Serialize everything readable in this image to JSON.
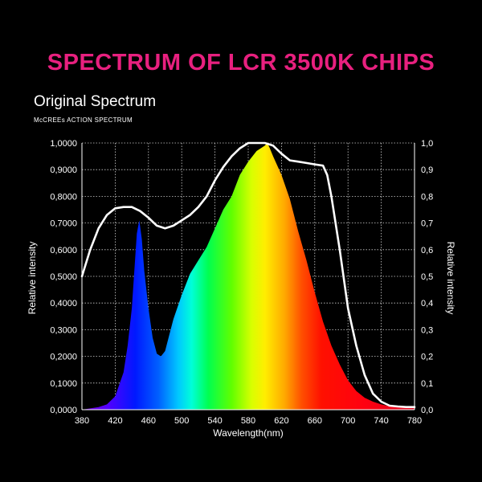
{
  "headline": "SPECTRUM OF LCR 3500K CHIPS",
  "subtitle": "Original Spectrum",
  "caption": "McCREEs ACTION SPECTRUM",
  "colors": {
    "headline": "#e8207f",
    "background": "#000000",
    "grid": "#d0d0d0",
    "curve": "#ffffff"
  },
  "chart_data": {
    "type": "area",
    "title": "",
    "xlabel": "Wavelength(nm)",
    "ylabel_left": "Relative intensity",
    "ylabel_right": "Relative intensity",
    "xlim": [
      380,
      780
    ],
    "ylim": [
      0,
      1
    ],
    "x_ticks": [
      380,
      420,
      460,
      500,
      540,
      580,
      620,
      660,
      700,
      740,
      780
    ],
    "y_ticks_left": [
      "0,0000",
      "0,1000",
      "0,2000",
      "0,3000",
      "0,4000",
      "0,5000",
      "0,6000",
      "0,7000",
      "0,8000",
      "0,9000",
      "1,0000"
    ],
    "y_ticks_right": [
      "0,0",
      "0,1",
      "0,2",
      "0,3",
      "0,4",
      "0,5",
      "0,6",
      "0,7",
      "0,8",
      "0,9",
      "1,0"
    ],
    "grid": true,
    "series": [
      {
        "name": "Original Spectrum",
        "style": "spectral-colored filled area",
        "x": [
          380,
          400,
          410,
          420,
          430,
          435,
          440,
          443,
          446,
          449,
          452,
          455,
          460,
          465,
          470,
          475,
          480,
          485,
          490,
          500,
          510,
          520,
          530,
          540,
          550,
          560,
          570,
          580,
          590,
          600,
          603,
          606,
          610,
          620,
          630,
          640,
          650,
          660,
          670,
          680,
          690,
          700,
          710,
          720,
          730,
          740,
          750,
          760,
          780
        ],
        "y": [
          0.0,
          0.01,
          0.02,
          0.05,
          0.14,
          0.24,
          0.38,
          0.52,
          0.66,
          0.71,
          0.64,
          0.52,
          0.38,
          0.27,
          0.21,
          0.2,
          0.22,
          0.28,
          0.34,
          0.43,
          0.51,
          0.56,
          0.61,
          0.68,
          0.75,
          0.8,
          0.88,
          0.93,
          0.97,
          0.99,
          1.0,
          0.98,
          0.95,
          0.88,
          0.79,
          0.67,
          0.56,
          0.44,
          0.33,
          0.24,
          0.17,
          0.11,
          0.07,
          0.045,
          0.03,
          0.02,
          0.013,
          0.009,
          0.005
        ]
      },
      {
        "name": "McCREEs ACTION SPECTRUM",
        "style": "white line",
        "x": [
          380,
          390,
          400,
          410,
          420,
          430,
          440,
          450,
          460,
          470,
          480,
          490,
          500,
          510,
          520,
          530,
          540,
          550,
          560,
          570,
          580,
          590,
          600,
          610,
          620,
          630,
          640,
          650,
          660,
          670,
          675,
          680,
          690,
          700,
          710,
          720,
          730,
          740,
          750,
          760,
          770,
          780
        ],
        "y": [
          0.5,
          0.6,
          0.68,
          0.73,
          0.755,
          0.76,
          0.76,
          0.745,
          0.72,
          0.69,
          0.68,
          0.69,
          0.71,
          0.73,
          0.76,
          0.8,
          0.86,
          0.91,
          0.95,
          0.98,
          1.0,
          1.0,
          1.0,
          0.99,
          0.96,
          0.935,
          0.93,
          0.925,
          0.92,
          0.915,
          0.88,
          0.8,
          0.6,
          0.38,
          0.24,
          0.13,
          0.06,
          0.03,
          0.015,
          0.012,
          0.01,
          0.01
        ]
      }
    ]
  }
}
